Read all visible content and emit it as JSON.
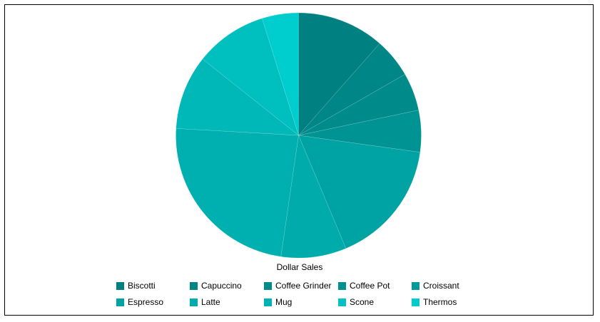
{
  "chart_data": {
    "type": "pie",
    "series_label": "Dollar Sales",
    "categories": [
      "Biscotti",
      "Capuccino",
      "Coffee Grinder",
      "Coffee Pot",
      "Croissant",
      "Espresso",
      "Latte",
      "Mug",
      "Scone",
      "Thermos"
    ],
    "values": [
      11.5,
      5.2,
      5.0,
      5.5,
      16.5,
      8.6,
      23.6,
      9.8,
      9.5,
      4.8
    ],
    "colors": [
      "#008080",
      "#008686",
      "#008b8b",
      "#009393",
      "#00a3a3",
      "#00abab",
      "#00b0b0",
      "#00b8b8",
      "#00bfbf",
      "#00cdcd"
    ],
    "legend": {
      "position": "bottom",
      "items": [
        "Biscotti",
        "Capuccino",
        "Coffee Grinder",
        "Coffee Pot",
        "Croissant",
        "Espresso",
        "Latte",
        "Mug",
        "Scone",
        "Thermos"
      ],
      "colors": [
        "#008080",
        "#008585",
        "#008a8a",
        "#009090",
        "#009a9a",
        "#00a2a2",
        "#00abab",
        "#00b2b2",
        "#00c2c2",
        "#00cccc"
      ]
    },
    "start_angle_deg": 0,
    "direction": "clockwise"
  }
}
